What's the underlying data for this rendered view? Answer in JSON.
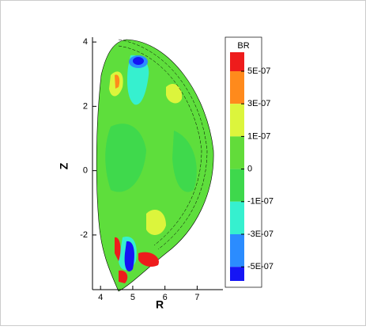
{
  "chart_data": {
    "type": "contour",
    "x_label": "R",
    "y_label": "Z",
    "legend_title": "BR",
    "xlim": [
      3.75,
      7.8
    ],
    "ylim": [
      -3.7,
      4.15
    ],
    "xticks": [
      4,
      5,
      6,
      7
    ],
    "yticks": [
      4,
      2,
      0,
      -2
    ],
    "levels": [
      {
        "value": 5e-07,
        "label": "5E-07"
      },
      {
        "value": 3e-07,
        "label": "3E-07"
      },
      {
        "value": 1e-07,
        "label": "1E-07"
      },
      0,
      {
        "value": -1e-07,
        "label": "-1E-07"
      },
      {
        "value": -3e-07,
        "label": "-3E-07"
      },
      {
        "value": -5e-07,
        "label": "-5E-07"
      }
    ],
    "level_colors": [
      "#ee1c1c",
      "#ff8a1c",
      "#dcf53c",
      "#62dc3a",
      "#3ed84c",
      "#36f0cf",
      "#2b8cff",
      "#1515f5"
    ]
  }
}
